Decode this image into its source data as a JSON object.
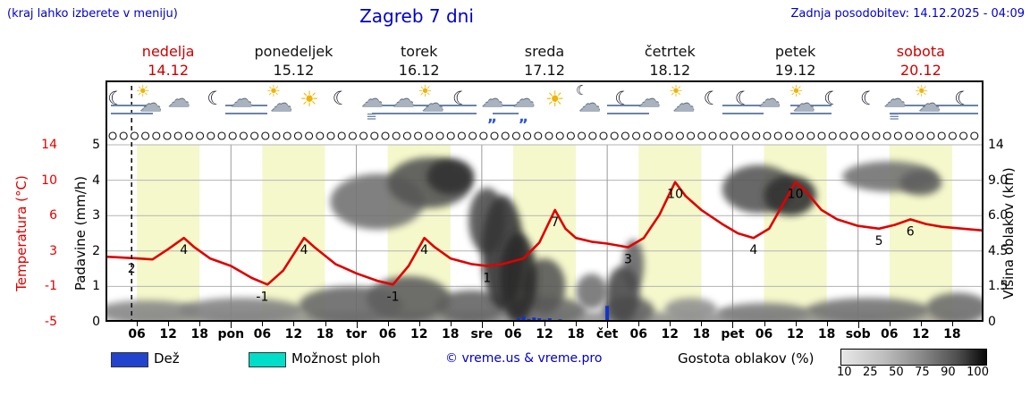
{
  "page": {
    "hint": "(kraj lahko izberete v meniju)",
    "title": "Zagreb 7 dni",
    "updated": "Zadnja posodobitev: 14.12.2025 - 04:09"
  },
  "colors": {
    "accent_blue": "#0000cc",
    "temp_red": "#e00000",
    "day_red": "#cc0000",
    "daylight_band": "#f5f8cb",
    "rain_blue": "#2244cc",
    "rain_bar_blue": "#1133cc",
    "showers_cyan": "#00ddc8",
    "fog_slate": "#6b84aa"
  },
  "days": [
    {
      "name": "nedelja",
      "date": "14.12",
      "red": true
    },
    {
      "name": "ponedeljek",
      "date": "15.12",
      "red": false
    },
    {
      "name": "torek",
      "date": "16.12",
      "red": false
    },
    {
      "name": "sreda",
      "date": "17.12",
      "red": false
    },
    {
      "name": "četrtek",
      "date": "18.12",
      "red": false
    },
    {
      "name": "petek",
      "date": "19.12",
      "red": false
    },
    {
      "name": "sobota",
      "date": "20.12",
      "red": true
    }
  ],
  "axes": {
    "temp_title": "Temperatura (°C)",
    "precip_title": "Padavine (mm/h)",
    "cloud_title": "Višina oblakov (km)",
    "temp_ticks": [
      "14",
      "10",
      "6",
      "3",
      "-1",
      "-5"
    ],
    "precip_ticks": [
      "5",
      "4",
      "3",
      "2",
      "1",
      "0"
    ],
    "cloud_ticks": [
      "14",
      "9.0",
      "6.0",
      "4.5",
      "1.5",
      "0"
    ]
  },
  "time_axis": [
    {
      "t": 6,
      "label": "06"
    },
    {
      "t": 12,
      "label": "12"
    },
    {
      "t": 18,
      "label": "18"
    },
    {
      "t": 24,
      "label": "pon",
      "day": true
    },
    {
      "t": 30,
      "label": "06"
    },
    {
      "t": 36,
      "label": "12"
    },
    {
      "t": 42,
      "label": "18"
    },
    {
      "t": 48,
      "label": "tor",
      "day": true
    },
    {
      "t": 54,
      "label": "06"
    },
    {
      "t": 60,
      "label": "12"
    },
    {
      "t": 66,
      "label": "18"
    },
    {
      "t": 72,
      "label": "sre",
      "day": true
    },
    {
      "t": 78,
      "label": "06"
    },
    {
      "t": 84,
      "label": "12"
    },
    {
      "t": 90,
      "label": "18"
    },
    {
      "t": 96,
      "label": "čet",
      "day": true
    },
    {
      "t": 102,
      "label": "06"
    },
    {
      "t": 108,
      "label": "12"
    },
    {
      "t": 114,
      "label": "18"
    },
    {
      "t": 120,
      "label": "pet",
      "day": true
    },
    {
      "t": 126,
      "label": "06"
    },
    {
      "t": 132,
      "label": "12"
    },
    {
      "t": 138,
      "label": "18"
    },
    {
      "t": 144,
      "label": "sob",
      "day": true
    },
    {
      "t": 150,
      "label": "06"
    },
    {
      "t": 156,
      "label": "12"
    },
    {
      "t": 162,
      "label": "18"
    }
  ],
  "legend": {
    "rain_label": "Dež",
    "showers_label": "Možnost ploh",
    "copyright": "© vreme.us & vreme.pro",
    "cloud_density_label": "Gostota oblakov (%)",
    "scale_ticks": [
      "10",
      "25",
      "50",
      "75",
      "90",
      "100"
    ]
  },
  "symbols": {
    "icons": [
      {
        "t": 2,
        "type": "moon"
      },
      {
        "t": 8,
        "type": "sun-cloud"
      },
      {
        "t": 14,
        "type": "cloud"
      },
      {
        "t": 21,
        "type": "moon"
      },
      {
        "t": 26,
        "type": "cloud"
      },
      {
        "t": 33,
        "type": "sun-cloud"
      },
      {
        "t": 39,
        "type": "sun"
      },
      {
        "t": 45,
        "type": "moon"
      },
      {
        "t": 51,
        "type": "fog-cloud"
      },
      {
        "t": 57,
        "type": "cloud"
      },
      {
        "t": 62,
        "type": "sun-cloud"
      },
      {
        "t": 68,
        "type": "moon"
      },
      {
        "t": 74,
        "type": "rain-cloud"
      },
      {
        "t": 80,
        "type": "rain-cloud"
      },
      {
        "t": 86,
        "type": "sun"
      },
      {
        "t": 92,
        "type": "moon-cloud"
      },
      {
        "t": 99,
        "type": "moon"
      },
      {
        "t": 104,
        "type": "cloud"
      },
      {
        "t": 110,
        "type": "sun-cloud"
      },
      {
        "t": 116,
        "type": "moon"
      },
      {
        "t": 122,
        "type": "moon"
      },
      {
        "t": 127,
        "type": "cloud"
      },
      {
        "t": 133,
        "type": "sun-cloud"
      },
      {
        "t": 139,
        "type": "moon"
      },
      {
        "t": 146,
        "type": "moon"
      },
      {
        "t": 151,
        "type": "fog-cloud"
      },
      {
        "t": 157,
        "type": "sun-cloud"
      },
      {
        "t": 164,
        "type": "moon"
      }
    ],
    "fog_segments_hours": [
      [
        1,
        9
      ],
      [
        23,
        31
      ],
      [
        51,
        71
      ],
      [
        74,
        79
      ],
      [
        96,
        104
      ],
      [
        118,
        126
      ],
      [
        131,
        139
      ],
      [
        150,
        167
      ]
    ]
  },
  "chart_data": {
    "type": "line",
    "title": "Zagreb 7 dni",
    "x_domain_hours": [
      0,
      168
    ],
    "daylight_hours": [
      6,
      18
    ],
    "temp_axis_range_c": [
      -5,
      14
    ],
    "precip_axis_range_mm_h": [
      0,
      5
    ],
    "cloud_axis_range_km": [
      0,
      14
    ],
    "now_line_hour": 5,
    "temperature_series": {
      "name": "Temperatura (°C)",
      "points": [
        [
          0,
          2
        ],
        [
          3,
          1.9
        ],
        [
          6,
          1.8
        ],
        [
          9,
          1.7
        ],
        [
          12,
          2.8
        ],
        [
          15,
          4
        ],
        [
          17,
          3
        ],
        [
          20,
          1.8
        ],
        [
          24,
          1
        ],
        [
          28,
          -0.3
        ],
        [
          31,
          -1
        ],
        [
          34,
          0.5
        ],
        [
          38,
          4
        ],
        [
          40,
          3
        ],
        [
          44,
          1.2
        ],
        [
          48,
          0.2
        ],
        [
          52,
          -0.6
        ],
        [
          55,
          -1
        ],
        [
          58,
          1
        ],
        [
          61,
          4
        ],
        [
          63,
          3
        ],
        [
          66,
          1.8
        ],
        [
          70,
          1.2
        ],
        [
          73,
          1
        ],
        [
          76,
          1.2
        ],
        [
          80,
          1.8
        ],
        [
          83,
          3.5
        ],
        [
          86,
          7
        ],
        [
          88,
          5
        ],
        [
          90,
          4
        ],
        [
          93,
          3.6
        ],
        [
          96,
          3.4
        ],
        [
          100,
          3
        ],
        [
          103,
          4
        ],
        [
          106,
          6.5
        ],
        [
          109,
          10
        ],
        [
          111,
          8.5
        ],
        [
          114,
          7
        ],
        [
          118,
          5.5
        ],
        [
          121,
          4.5
        ],
        [
          124,
          4
        ],
        [
          127,
          5
        ],
        [
          130,
          8
        ],
        [
          132,
          10
        ],
        [
          134,
          9
        ],
        [
          137,
          7
        ],
        [
          140,
          6
        ],
        [
          144,
          5.3
        ],
        [
          148,
          5
        ],
        [
          151,
          5.4
        ],
        [
          154,
          6
        ],
        [
          157,
          5.5
        ],
        [
          160,
          5.2
        ],
        [
          164,
          5
        ],
        [
          168,
          4.8
        ]
      ]
    },
    "temperature_labels": [
      {
        "t": 5,
        "v": 2
      },
      {
        "t": 15,
        "v": 4
      },
      {
        "t": 30,
        "v": -1
      },
      {
        "t": 38,
        "v": 4
      },
      {
        "t": 55,
        "v": -1
      },
      {
        "t": 61,
        "v": 4
      },
      {
        "t": 73,
        "v": 1
      },
      {
        "t": 86,
        "v": 7
      },
      {
        "t": 100,
        "v": 3
      },
      {
        "t": 109,
        "v": 10
      },
      {
        "t": 124,
        "v": 4
      },
      {
        "t": 132,
        "v": 10
      },
      {
        "t": 148,
        "v": 5
      },
      {
        "t": 154,
        "v": 6
      }
    ],
    "rain_bars_mm_h": [
      [
        79,
        0.1
      ],
      [
        80,
        0.15
      ],
      [
        81,
        0.08
      ],
      [
        82,
        0.12
      ],
      [
        83,
        0.1
      ],
      [
        84,
        0.06
      ],
      [
        85,
        0.1
      ],
      [
        86,
        0.05
      ],
      [
        87,
        0.07
      ],
      [
        96,
        0.45
      ]
    ],
    "cloud_blobs": [
      [
        52,
        9.5,
        9,
        2.2,
        55
      ],
      [
        62,
        11,
        8,
        2,
        70
      ],
      [
        66,
        11.5,
        4.5,
        1.4,
        88
      ],
      [
        73,
        8,
        3.5,
        2.6,
        72
      ],
      [
        76,
        5.5,
        4,
        4.5,
        85
      ],
      [
        79,
        3.5,
        3.5,
        3.5,
        90
      ],
      [
        84,
        2.8,
        4,
        2.2,
        68
      ],
      [
        93,
        2.4,
        3,
        1.4,
        55
      ],
      [
        99,
        2.2,
        3.2,
        2.2,
        75
      ],
      [
        101,
        4.5,
        2,
        2,
        62
      ],
      [
        112,
        1,
        5,
        0.9,
        40
      ],
      [
        125,
        10.5,
        7,
        1.9,
        68
      ],
      [
        131,
        10,
        5,
        1.6,
        88
      ],
      [
        150,
        11.5,
        9,
        1.2,
        55
      ],
      [
        156,
        11,
        4,
        1,
        65
      ],
      [
        8,
        0.8,
        10,
        0.9,
        45
      ],
      [
        26,
        0.9,
        12,
        1,
        48
      ],
      [
        47,
        1.3,
        10,
        1.5,
        60
      ],
      [
        58,
        1.8,
        8,
        1.8,
        65
      ],
      [
        70,
        1.2,
        7,
        1.3,
        62
      ],
      [
        84,
        0.9,
        8,
        1.1,
        58
      ],
      [
        100,
        0.9,
        5,
        1.1,
        62
      ],
      [
        126,
        0.7,
        9,
        0.8,
        50
      ],
      [
        146,
        0.9,
        12,
        1,
        55
      ],
      [
        163,
        1.1,
        6,
        1.2,
        58
      ],
      [
        84,
        0.3,
        84,
        0.5,
        40
      ]
    ]
  }
}
